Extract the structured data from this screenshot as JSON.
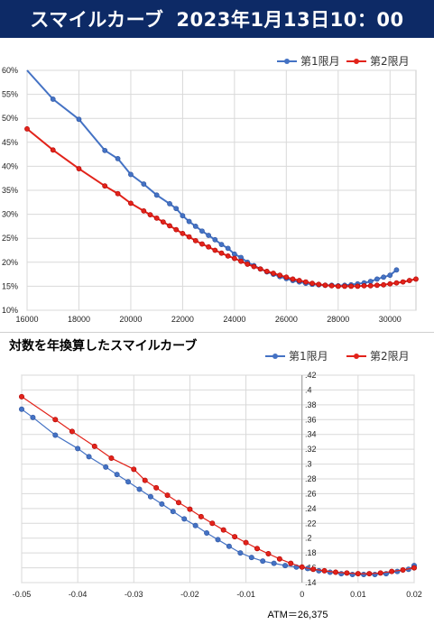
{
  "banner": {
    "title_left": "スマイルカーブ",
    "title_right": "2023年1月13日10：00"
  },
  "colors": {
    "series1": "#4472c4",
    "series2": "#e2231a",
    "banner_bg": "#0d2a66"
  },
  "chart_data": [
    {
      "type": "line",
      "title": "",
      "xlim": [
        16000,
        31000
      ],
      "ylim": [
        10,
        60
      ],
      "x_ticks": [
        16000,
        18000,
        20000,
        22000,
        24000,
        26000,
        28000,
        30000
      ],
      "y_ticks": [
        10,
        15,
        20,
        25,
        30,
        35,
        40,
        45,
        50,
        55,
        60
      ],
      "y_tick_suffix": "%",
      "grid": true,
      "legend": "top-right",
      "series": [
        {
          "name": "第1限月",
          "x": [
            16000,
            17000,
            18000,
            19000,
            19500,
            20000,
            20500,
            21000,
            21500,
            21750,
            22000,
            22250,
            22500,
            22750,
            23000,
            23250,
            23500,
            23750,
            24000,
            24250,
            24500,
            24750,
            25000,
            25250,
            25500,
            25750,
            26000,
            26250,
            26500,
            26750,
            27000,
            27250,
            27500,
            27750,
            28000,
            28250,
            28500,
            28750,
            29000,
            29250,
            29500,
            29750,
            30000,
            30250
          ],
          "y": [
            60.5,
            54,
            49.8,
            43.3,
            41.6,
            38.3,
            36.3,
            34,
            32.2,
            31.2,
            29.7,
            28.5,
            27.5,
            26.5,
            25.6,
            24.7,
            23.7,
            22.9,
            21.7,
            21.0,
            20.0,
            19.3,
            18.6,
            18.0,
            17.5,
            17.0,
            16.6,
            16.2,
            15.9,
            15.6,
            15.4,
            15.3,
            15.2,
            15.2,
            15.1,
            15.2,
            15.3,
            15.5,
            15.7,
            16.0,
            16.5,
            16.9,
            17.3,
            18.4
          ]
        },
        {
          "name": "第2限月",
          "x": [
            16000,
            17000,
            18000,
            19000,
            19500,
            20000,
            20500,
            20750,
            21000,
            21250,
            21500,
            21750,
            22000,
            22250,
            22500,
            22750,
            23000,
            23250,
            23500,
            23750,
            24000,
            24250,
            24500,
            24750,
            25000,
            25250,
            25500,
            25750,
            26000,
            26250,
            26500,
            26750,
            27000,
            27250,
            27500,
            27750,
            28000,
            28250,
            28500,
            28750,
            29000,
            29250,
            29500,
            29750,
            30000,
            30250,
            30500,
            30750,
            31000
          ],
          "y": [
            47.8,
            43.4,
            39.5,
            35.9,
            34.3,
            32.3,
            30.7,
            29.9,
            29.2,
            28.4,
            27.6,
            26.8,
            26.0,
            25.3,
            24.5,
            23.8,
            23.2,
            22.5,
            21.9,
            21.3,
            20.8,
            20.2,
            19.6,
            19.1,
            18.6,
            18.1,
            17.7,
            17.3,
            16.9,
            16.5,
            16.2,
            15.9,
            15.6,
            15.4,
            15.2,
            15.1,
            15.0,
            15.0,
            15.0,
            15.0,
            15.1,
            15.1,
            15.2,
            15.3,
            15.5,
            15.7,
            15.9,
            16.2,
            16.5
          ]
        }
      ]
    },
    {
      "type": "line",
      "title": "対数を年換算したスマイルカーブ",
      "xlim": [
        -0.05,
        0.02
      ],
      "ylim": [
        0.14,
        0.42
      ],
      "x_ticks": [
        -0.05,
        -0.04,
        -0.03,
        -0.02,
        -0.01,
        0,
        0.01,
        0.02
      ],
      "y_ticks": [
        0.14,
        0.16,
        0.18,
        0.2,
        0.22,
        0.24,
        0.26,
        0.28,
        0.3,
        0.32,
        0.34,
        0.36,
        0.38,
        0.4,
        0.42
      ],
      "grid": true,
      "legend": "top",
      "annotation": "ATM＝26,375",
      "series": [
        {
          "name": "第1限月",
          "x": [
            -0.05,
            -0.048,
            -0.044,
            -0.04,
            -0.038,
            -0.035,
            -0.033,
            -0.031,
            -0.029,
            -0.027,
            -0.025,
            -0.023,
            -0.021,
            -0.019,
            -0.017,
            -0.015,
            -0.013,
            -0.011,
            -0.009,
            -0.007,
            -0.005,
            -0.003,
            -0.001,
            0.001,
            0.003,
            0.005,
            0.007,
            0.009,
            0.011,
            0.013,
            0.015,
            0.017,
            0.019,
            0.02
          ],
          "y": [
            0.374,
            0.363,
            0.339,
            0.321,
            0.31,
            0.296,
            0.286,
            0.276,
            0.266,
            0.256,
            0.246,
            0.236,
            0.226,
            0.217,
            0.207,
            0.198,
            0.189,
            0.18,
            0.174,
            0.169,
            0.166,
            0.163,
            0.161,
            0.159,
            0.156,
            0.154,
            0.152,
            0.151,
            0.151,
            0.151,
            0.152,
            0.155,
            0.158,
            0.163
          ]
        },
        {
          "name": "第2限月",
          "x": [
            -0.05,
            -0.044,
            -0.041,
            -0.037,
            -0.034,
            -0.03,
            -0.028,
            -0.026,
            -0.024,
            -0.022,
            -0.02,
            -0.018,
            -0.016,
            -0.014,
            -0.012,
            -0.01,
            -0.008,
            -0.006,
            -0.004,
            -0.002,
            0.0,
            0.002,
            0.004,
            0.006,
            0.008,
            0.01,
            0.012,
            0.014,
            0.016,
            0.018,
            0.02
          ],
          "y": [
            0.391,
            0.36,
            0.344,
            0.324,
            0.308,
            0.293,
            0.278,
            0.268,
            0.258,
            0.248,
            0.239,
            0.229,
            0.22,
            0.211,
            0.202,
            0.194,
            0.186,
            0.179,
            0.172,
            0.166,
            0.161,
            0.158,
            0.156,
            0.154,
            0.153,
            0.152,
            0.152,
            0.153,
            0.155,
            0.157,
            0.16
          ]
        }
      ]
    }
  ]
}
